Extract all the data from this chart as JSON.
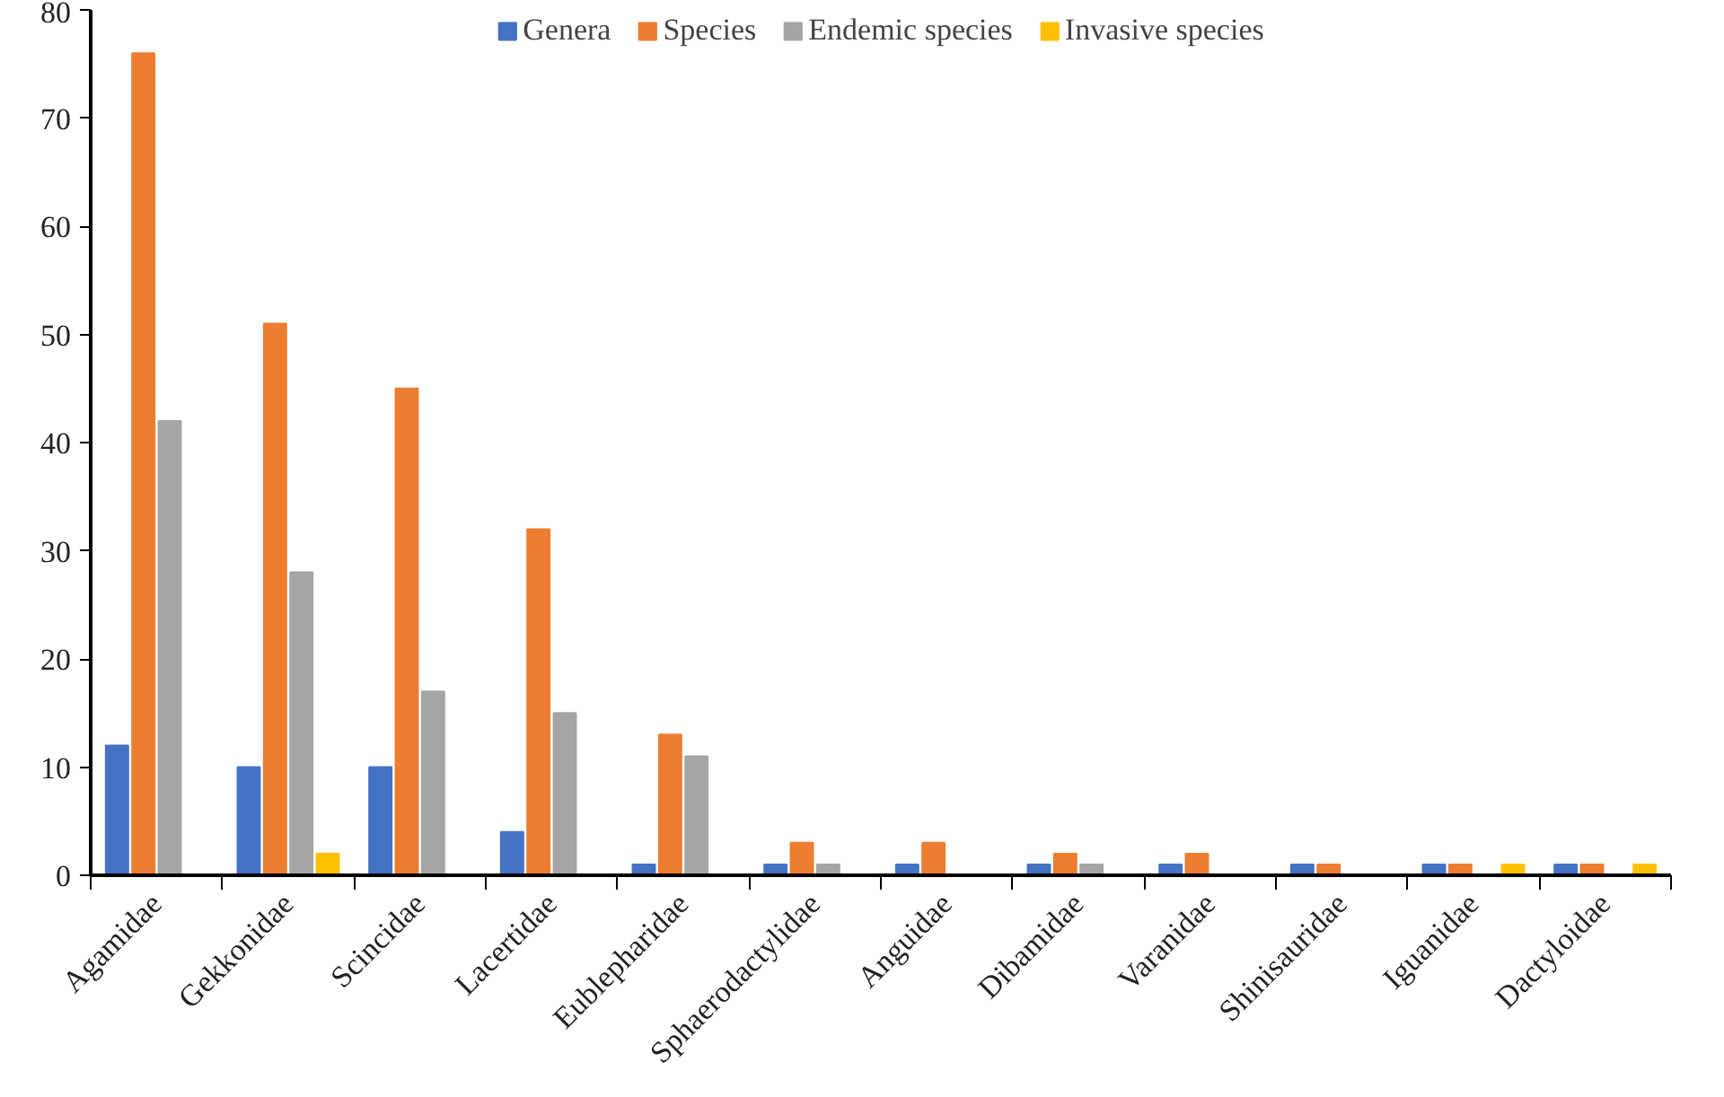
{
  "chart_data": {
    "type": "bar",
    "categories": [
      "Agamidae",
      "Gekkonidae",
      "Scincidae",
      "Lacertidae",
      "Eublepharidae",
      "Sphaerodactylidae",
      "Anguidae",
      "Dibamidae",
      "Varanidae",
      "Shinisauridae",
      "Iguanidae",
      "Dactyloidae"
    ],
    "series": [
      {
        "name": "Genera",
        "color": "#4472c4",
        "values": [
          12,
          10,
          10,
          4,
          1,
          1,
          1,
          1,
          1,
          1,
          1,
          1
        ]
      },
      {
        "name": "Species",
        "color": "#ed7d31",
        "values": [
          76,
          51,
          45,
          32,
          13,
          3,
          3,
          2,
          2,
          1,
          1,
          1
        ]
      },
      {
        "name": "Endemic species",
        "color": "#a5a5a5",
        "values": [
          42,
          28,
          17,
          15,
          11,
          1,
          0,
          1,
          0,
          0,
          0,
          0
        ]
      },
      {
        "name": "Invasive species",
        "color": "#ffc000",
        "values": [
          0,
          2,
          0,
          0,
          0,
          0,
          0,
          0,
          0,
          0,
          1,
          1
        ]
      }
    ],
    "ylim": [
      0,
      80
    ],
    "yticks": [
      0,
      10,
      20,
      30,
      40,
      50,
      60,
      70,
      80
    ],
    "grid": false,
    "legend": "top"
  }
}
